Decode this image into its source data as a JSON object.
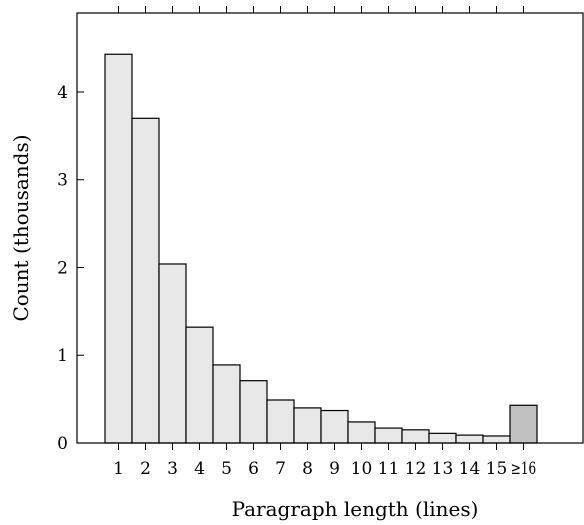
{
  "chart_data": {
    "type": "bar",
    "title": "",
    "xlabel": "Paragraph length (lines)",
    "ylabel": "Count (thousands)",
    "categories": [
      "1",
      "2",
      "3",
      "4",
      "5",
      "6",
      "7",
      "8",
      "9",
      "10",
      "11",
      "12",
      "13",
      "14",
      "15",
      "≥16"
    ],
    "values": [
      4.43,
      3.7,
      2.04,
      1.32,
      0.89,
      0.71,
      0.49,
      0.4,
      0.37,
      0.24,
      0.17,
      0.15,
      0.11,
      0.09,
      0.08,
      0.43
    ],
    "yticks": [
      0,
      1,
      2,
      3,
      4
    ],
    "ylim": [
      0,
      4.9
    ],
    "grid": false,
    "colors": {
      "bar": "#e8e8e8",
      "highlight_bar": "#c0c0c0",
      "stroke": "#000000"
    },
    "highlight_category": "≥16"
  }
}
